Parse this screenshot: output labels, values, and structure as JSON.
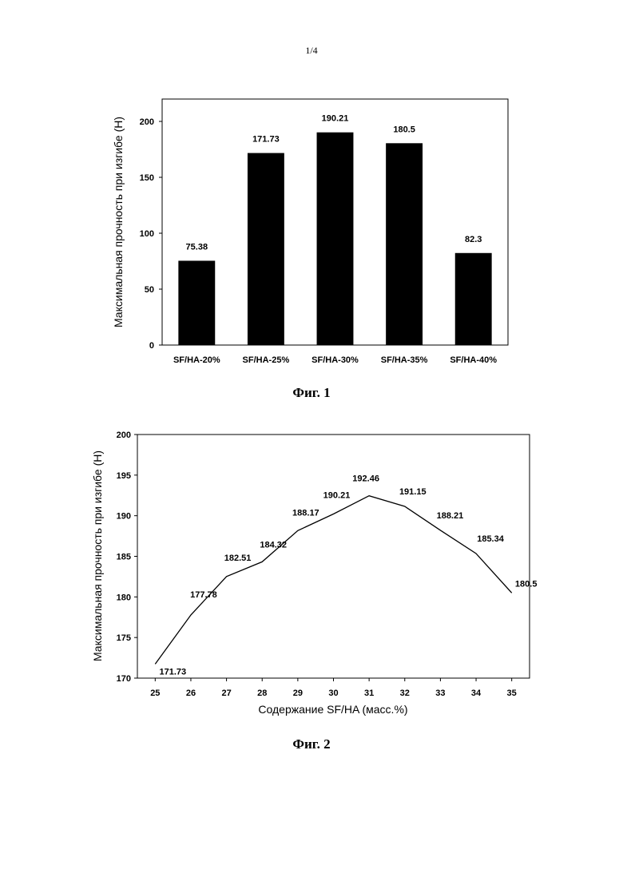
{
  "page_number": "1/4",
  "chart_data": [
    {
      "type": "bar",
      "categories": [
        "SF/HA-20%",
        "SF/HA-25%",
        "SF/HA-30%",
        "SF/HA-35%",
        "SF/HA-40%"
      ],
      "values": [
        75.38,
        171.73,
        190.21,
        180.5,
        82.3
      ],
      "data_labels": [
        "75.38",
        "171.73",
        "190.21",
        "180.5",
        "82.3"
      ],
      "title": "",
      "xlabel": "",
      "ylabel": "Максимальная прочность при изгибе (Н)",
      "ylim": [
        0,
        220
      ],
      "yticks": [
        0,
        50,
        100,
        150,
        200
      ],
      "grid": false,
      "bar_color": "#000000",
      "caption": "Фиг. 1"
    },
    {
      "type": "line",
      "x": [
        25,
        26,
        27,
        28,
        29,
        30,
        31,
        32,
        33,
        34,
        35
      ],
      "values": [
        171.73,
        177.78,
        182.51,
        184.32,
        188.17,
        190.21,
        192.46,
        191.15,
        188.21,
        185.34,
        180.5
      ],
      "data_labels": [
        "171.73",
        "177.78",
        "182.51",
        "184.32",
        "188.17",
        "190.21",
        "192.46",
        "191.15",
        "188.21",
        "185.34",
        "180.5"
      ],
      "title": "",
      "xlabel": "Содержание SF/HA (масс.%)",
      "ylabel": "Максимальная прочность при изгибе (Н)",
      "xlim": [
        24.5,
        35.5
      ],
      "ylim": [
        170,
        200
      ],
      "yticks": [
        170,
        175,
        180,
        185,
        190,
        195,
        200
      ],
      "xticks": [
        25,
        26,
        27,
        28,
        29,
        30,
        31,
        32,
        33,
        34,
        35
      ],
      "grid": false,
      "line_color": "#000000",
      "caption": "Фиг. 2"
    }
  ]
}
